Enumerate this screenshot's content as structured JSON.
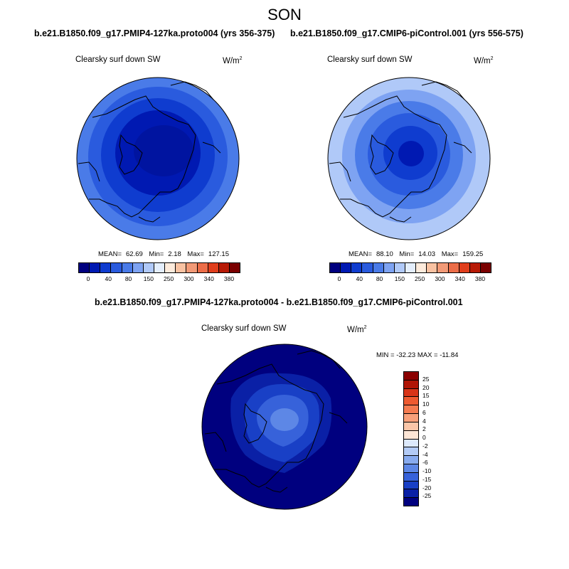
{
  "title": "SON",
  "panels": [
    {
      "title": "b.e21.B1850.f09_g17.PMIP4-127ka.proto004 (yrs 356-375)",
      "variable": "Clearsky surf down SW",
      "unit_base": "W/m",
      "unit_exp": "2",
      "stats": {
        "mean_label": "MEAN=",
        "mean": "62.69",
        "min_label": "Min=",
        "min": "2.18",
        "max_label": "Max=",
        "max": "127.15"
      }
    },
    {
      "title": "b.e21.B1850.f09_g17.CMIP6-piControl.001 (yrs 556-575)",
      "variable": "Clearsky surf down SW",
      "unit_base": "W/m",
      "unit_exp": "2",
      "stats": {
        "mean_label": "MEAN=",
        "mean": "88.10",
        "min_label": "Min=",
        "min": "14.03",
        "max_label": "Max=",
        "max": "159.25"
      }
    }
  ],
  "top_colorbar": {
    "colors": [
      "#00007f",
      "#0019b2",
      "#0f3ccf",
      "#2a5bde",
      "#4a7be8",
      "#7ea3f2",
      "#b0c9f8",
      "#e4eefc",
      "#fdebdc",
      "#f9c2a2",
      "#f29a77",
      "#ec6d48",
      "#e03e1c",
      "#b71a06",
      "#7a0000"
    ],
    "ticks": [
      "0",
      "40",
      "80",
      "150",
      "250",
      "300",
      "340",
      "380"
    ]
  },
  "diff_panel": {
    "title": "b.e21.B1850.f09_g17.PMIP4-127ka.proto004 - b.e21.B1850.f09_g17.CMIP6-piControl.001",
    "variable": "Clearsky surf down SW",
    "unit_base": "W/m",
    "unit_exp": "2",
    "minmax": "MIN = -32.23 MAX = -11.84"
  },
  "diff_colorbar": {
    "colors": [
      "#8b0000",
      "#b01505",
      "#d83418",
      "#ee5a30",
      "#f57b50",
      "#f8a07a",
      "#fbc6a8",
      "#fde6d6",
      "#dde9fb",
      "#b3cbf6",
      "#88abef",
      "#5d87e6",
      "#3762da",
      "#1940c6",
      "#0a20a6",
      "#00007f"
    ],
    "ticks": [
      "25",
      "20",
      "15",
      "10",
      "6",
      "4",
      "2",
      "0",
      "-2",
      "-4",
      "-6",
      "-10",
      "-15",
      "-20",
      "-25"
    ]
  },
  "map_colors": {
    "c0": "#00007f",
    "c1": "#0019b2",
    "c2": "#0f3ccf",
    "c3": "#2a5bde",
    "c4": "#4a7be8",
    "c5": "#7ea3f2",
    "c6": "#b0c9f8"
  }
}
